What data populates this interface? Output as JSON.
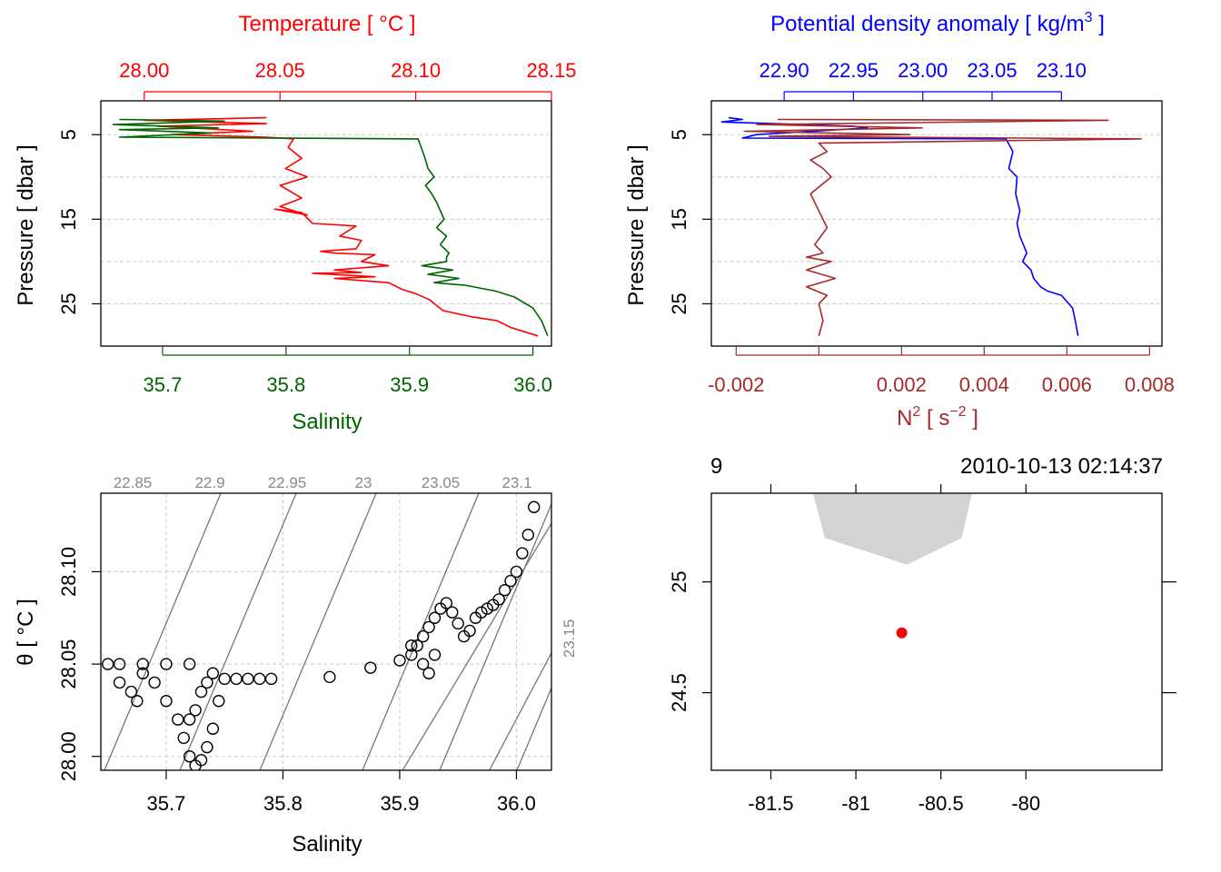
{
  "chart_data": [
    {
      "type": "line",
      "panel": "profile-temperature-salinity",
      "ylabel": "Pressure [ dbar ]",
      "ylim": [
        30,
        1
      ],
      "yticks": [
        5,
        15,
        25
      ],
      "ygrid": [
        5,
        10,
        15,
        20,
        25
      ],
      "top_axis": {
        "label": "Temperature [ °C ]",
        "color": "#ff0000",
        "lim": [
          27.984,
          28.15
        ],
        "ticks": [
          {
            "v": 28.0,
            "label": "28.00"
          },
          {
            "v": 28.05,
            "label": "28.05"
          },
          {
            "v": 28.1,
            "label": "28.10"
          },
          {
            "v": 28.15,
            "label": "28.15"
          }
        ]
      },
      "bottom_axis": {
        "label": "Salinity",
        "color": "#006400",
        "lim": [
          35.65,
          36.015
        ],
        "ticks": [
          {
            "v": 35.7,
            "label": "35.7"
          },
          {
            "v": 35.8,
            "label": "35.8"
          },
          {
            "v": 35.9,
            "label": "35.9"
          },
          {
            "v": 36.0,
            "label": "36.0"
          }
        ]
      },
      "series": [
        {
          "name": "Temperature",
          "axis": "top",
          "color": "#ff0000",
          "x": [
            28.045,
            28.0,
            28.045,
            28.005,
            28.04,
            28.01,
            28.045,
            28.055,
            28.053,
            28.058,
            28.052,
            28.06,
            28.05,
            28.058,
            28.05,
            28.06,
            28.048,
            28.058,
            28.062,
            28.078,
            28.072,
            28.08,
            28.078,
            28.065,
            28.07,
            28.085,
            28.08,
            28.09,
            28.07,
            28.08,
            28.062,
            28.085,
            28.07,
            28.09,
            28.095,
            28.1,
            28.105,
            28.11,
            28.12,
            28.13,
            28.135,
            28.14,
            28.145
          ],
          "y": [
            3.0,
            3.3,
            3.7,
            4.0,
            4.6,
            5.0,
            5.3,
            5.5,
            6.5,
            7.8,
            9.0,
            10.0,
            11.0,
            12.5,
            13.5,
            14.5,
            13.8,
            14.2,
            15.5,
            15.8,
            17.0,
            17.5,
            18.5,
            18.8,
            19.0,
            19.2,
            20.0,
            20.5,
            21.0,
            21.3,
            21.4,
            21.8,
            22.0,
            22.5,
            23.3,
            23.8,
            24.5,
            25.8,
            26.5,
            27.0,
            27.8,
            28.3,
            28.8
          ]
        },
        {
          "name": "Salinity",
          "axis": "bottom",
          "color": "#006400",
          "x": [
            35.665,
            35.75,
            35.66,
            35.745,
            35.665,
            35.74,
            35.665,
            35.907,
            35.912,
            35.915,
            35.92,
            35.913,
            35.918,
            35.922,
            35.925,
            35.928,
            35.922,
            35.93,
            35.925,
            35.932,
            35.93,
            35.93,
            35.91,
            35.935,
            35.915,
            35.94,
            35.92,
            35.945,
            35.97,
            35.985,
            36.0,
            36.007,
            36.012
          ],
          "y": [
            3.2,
            3.4,
            3.8,
            4.2,
            4.4,
            4.8,
            5.3,
            5.5,
            7.5,
            9.0,
            10.0,
            11.0,
            12.0,
            13.0,
            14.0,
            15.0,
            16.0,
            17.0,
            18.0,
            19.0,
            19.5,
            20.0,
            20.5,
            21.0,
            21.5,
            22.0,
            22.5,
            22.8,
            23.5,
            24.2,
            25.5,
            27.0,
            28.8
          ]
        }
      ]
    },
    {
      "type": "line",
      "panel": "profile-density-n2",
      "ylabel": "Pressure [ dbar ]",
      "ylim": [
        30,
        1
      ],
      "yticks": [
        5,
        15,
        25
      ],
      "ygrid": [
        5,
        10,
        15,
        20,
        25
      ],
      "top_axis": {
        "label_prefix": "Potential density anomaly [ kg/m",
        "label_sup": "3",
        "label_suffix": " ]",
        "color": "#0000ff",
        "lim": [
          22.8475,
          23.1725
        ],
        "ticks": [
          {
            "v": 22.9,
            "label": "22.90"
          },
          {
            "v": 22.95,
            "label": "22.95"
          },
          {
            "v": 23.0,
            "label": "23.00"
          },
          {
            "v": 23.05,
            "label": "23.05"
          },
          {
            "v": 23.1,
            "label": "23.10"
          }
        ]
      },
      "bottom_axis": {
        "label_prefix": "N",
        "label_sup1": "2",
        "label_mid": " [ s",
        "label_sup2": "−2",
        "label_suffix": " ]",
        "color": "#a52a2a",
        "lim": [
          -0.0026,
          0.0083
        ],
        "ticks": [
          {
            "v": -0.002,
            "label": "-0.002"
          },
          {
            "v": 0.0,
            "label": ""
          },
          {
            "v": 0.002,
            "label": "0.002"
          },
          {
            "v": 0.004,
            "label": "0.004"
          },
          {
            "v": 0.006,
            "label": "0.006"
          },
          {
            "v": 0.008,
            "label": "0.008"
          }
        ]
      },
      "series": [
        {
          "name": "Potential density anomaly",
          "axis": "top",
          "color": "#0000ff",
          "x": [
            22.86,
            22.87,
            22.855,
            22.95,
            22.96,
            22.88,
            22.87,
            23.06,
            23.065,
            23.062,
            23.068,
            23.067,
            23.07,
            23.068,
            23.07,
            23.075,
            23.072,
            23.078,
            23.08,
            23.085,
            23.09,
            23.1,
            23.108,
            23.11,
            23.112
          ],
          "y": [
            3.0,
            3.2,
            3.5,
            4.0,
            4.2,
            5.0,
            5.4,
            5.5,
            7.0,
            9.0,
            10.0,
            12.0,
            14.0,
            15.5,
            17.0,
            19.0,
            20.0,
            21.0,
            22.0,
            23.0,
            23.5,
            24.0,
            25.5,
            27.0,
            28.8
          ]
        },
        {
          "name": "N²",
          "axis": "bottom",
          "color": "#a52a2a",
          "x": [
            -0.001,
            0.007,
            -0.0015,
            0.0025,
            -0.0018,
            0.0022,
            -0.0012,
            0.0078,
            0.0,
            0.0002,
            -0.0002,
            0.0001,
            0.0003,
            -0.0002,
            0.0,
            0.0002,
            -0.0001,
            0.0001,
            -0.0003,
            0.0003,
            -0.0003,
            0.0004,
            -0.0003,
            0.0002,
            0.0,
            0.0001,
            0.0
          ],
          "y": [
            3.2,
            3.3,
            3.8,
            4.2,
            4.6,
            5.0,
            5.2,
            5.5,
            6.0,
            7.0,
            8.0,
            9.0,
            10.0,
            12.0,
            14.0,
            16.0,
            18.0,
            19.0,
            19.5,
            20.0,
            21.0,
            22.0,
            23.0,
            24.0,
            25.0,
            27.0,
            28.8
          ]
        }
      ]
    },
    {
      "type": "scatter",
      "panel": "ts-diagram",
      "xlabel": "Salinity",
      "ylabel_prefix": "θ [ °C ]",
      "xlim": [
        35.644,
        36.03
      ],
      "ylim": [
        27.9925,
        28.1425
      ],
      "xticks": [
        {
          "v": 35.7,
          "label": "35.7"
        },
        {
          "v": 35.8,
          "label": "35.8"
        },
        {
          "v": 35.9,
          "label": "35.9"
        },
        {
          "v": 36.0,
          "label": "36.0"
        }
      ],
      "yticks": [
        {
          "v": 28.0,
          "label": "28.00"
        },
        {
          "v": 28.05,
          "label": "28.05"
        },
        {
          "v": 28.1,
          "label": "28.10"
        }
      ],
      "xgrid": [
        35.7,
        35.8,
        35.9,
        36.0
      ],
      "ygrid": [
        28.0,
        28.05,
        28.1
      ],
      "isopycnal_labels": [
        "22.85",
        "22.9",
        "22.95",
        "23",
        "23.05",
        "23.1",
        "23.15"
      ],
      "points": {
        "s": [
          35.66,
          35.68,
          35.7,
          35.72,
          35.65,
          35.66,
          35.67,
          35.675,
          35.68,
          35.69,
          35.7,
          35.71,
          35.715,
          35.72,
          35.725,
          35.73,
          35.735,
          35.74,
          35.745,
          35.74,
          35.735,
          35.73,
          35.725,
          35.72,
          35.75,
          35.76,
          35.77,
          35.78,
          35.79,
          35.84,
          35.875,
          35.9,
          35.91,
          35.915,
          35.92,
          35.925,
          35.93,
          35.935,
          35.94,
          35.945,
          35.95,
          35.955,
          35.96,
          35.965,
          35.97,
          35.975,
          35.98,
          35.985,
          35.99,
          35.995,
          36.0,
          36.005,
          36.01,
          36.015,
          35.92,
          35.93,
          35.91,
          35.925
        ],
        "t": [
          28.05,
          28.05,
          28.05,
          28.05,
          28.05,
          28.04,
          28.035,
          28.03,
          28.045,
          28.04,
          28.03,
          28.02,
          28.01,
          28.0,
          27.995,
          27.998,
          28.005,
          28.015,
          28.03,
          28.045,
          28.04,
          28.035,
          28.025,
          28.02,
          28.042,
          28.042,
          28.042,
          28.042,
          28.042,
          28.043,
          28.048,
          28.052,
          28.055,
          28.06,
          28.065,
          28.07,
          28.075,
          28.08,
          28.083,
          28.078,
          28.072,
          28.065,
          28.068,
          28.075,
          28.078,
          28.08,
          28.082,
          28.085,
          28.09,
          28.095,
          28.1,
          28.11,
          28.12,
          28.135,
          28.05,
          28.055,
          28.06,
          28.045
        ]
      }
    },
    {
      "type": "map",
      "panel": "location-map",
      "top_left_label": "9",
      "top_right_label": "2010-10-13 02:14:37",
      "xlim": [
        -81.85,
        -79.2
      ],
      "ylim": [
        24.15,
        25.4
      ],
      "xticks": [
        {
          "v": -81.5,
          "label": "-81.5"
        },
        {
          "v": -81.0,
          "label": "-81"
        },
        {
          "v": -80.5,
          "label": "-80.5"
        },
        {
          "v": -80.0,
          "label": "-80"
        }
      ],
      "yticks": [
        {
          "v": 25.0,
          "label": "25"
        },
        {
          "v": 24.5,
          "label": "24.5"
        }
      ],
      "land_polygon_lonlat": [
        [
          -81.25,
          25.4
        ],
        [
          -80.32,
          25.4
        ],
        [
          -80.38,
          25.2
        ],
        [
          -80.7,
          25.08
        ],
        [
          -81.18,
          25.2
        ]
      ],
      "station": {
        "lon": -80.73,
        "lat": 24.77,
        "color": "#ff0000"
      }
    }
  ]
}
